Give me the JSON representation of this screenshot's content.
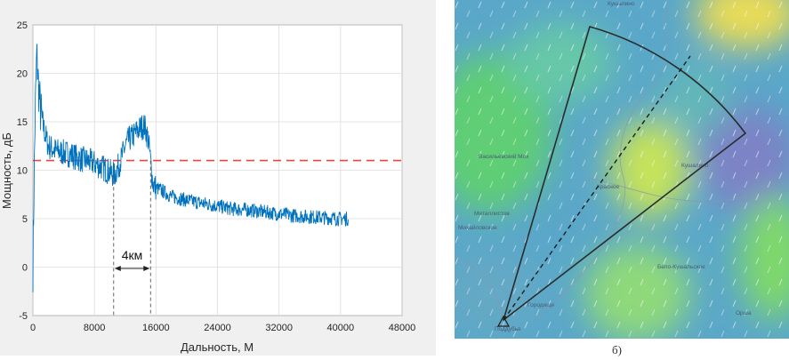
{
  "chart_data": {
    "type": "line",
    "xlabel": "Дальность, М",
    "ylabel": "Мощность, дБ",
    "xlim": [
      0,
      48000
    ],
    "ylim": [
      -5,
      25
    ],
    "xticks": [
      "0",
      "8000",
      "16000",
      "24000",
      "32000",
      "40000",
      "48000"
    ],
    "yticks": [
      "-5",
      "0",
      "5",
      "10",
      "15",
      "20",
      "25"
    ],
    "grid": true,
    "series": [
      {
        "color": "#0072bd",
        "x": [
          0,
          150,
          300,
          500,
          700,
          1000,
          1500,
          2000,
          3000,
          4000,
          5000,
          6000,
          7000,
          8000,
          9000,
          10000,
          10600,
          11000,
          11500,
          12000,
          12500,
          13000,
          13500,
          14000,
          14500,
          15000,
          15300,
          15600,
          16000,
          17000,
          18000,
          20000,
          22000,
          24000,
          26000,
          28000,
          30000,
          32000,
          34000,
          36000,
          38000,
          40000,
          41000
        ],
        "y": [
          0,
          9,
          16,
          22,
          19,
          16,
          14,
          12.5,
          12,
          11.8,
          11.6,
          11.2,
          11,
          10.7,
          10.3,
          9.8,
          9.5,
          10.2,
          11.2,
          12.5,
          13.2,
          13.5,
          14,
          14.4,
          14.6,
          13.2,
          11,
          8.6,
          8.2,
          7.8,
          7.3,
          6.9,
          6.6,
          6.3,
          6,
          5.9,
          5.7,
          5.5,
          5.3,
          5.2,
          5.1,
          5,
          5
        ]
      },
      {
        "color": "#e8453c",
        "style": "dashed",
        "x": [
          0,
          48000
        ],
        "y": [
          11,
          11
        ]
      }
    ],
    "annotations": [
      {
        "text": "4км",
        "x_start": 10500,
        "x_end": 15300
      }
    ]
  },
  "map": {
    "caption": "б)",
    "labels": {
      "top": "Кушалино",
      "vas": "Васильевский Мох",
      "met": "Металлистов",
      "mikh": "Михайловское",
      "krasn": "Красное",
      "kus": "Кушалино",
      "bel": "Бело-Кушальское",
      "orsha": "Орша",
      "gor": "Городище",
      "orig": "Поддубье"
    }
  }
}
